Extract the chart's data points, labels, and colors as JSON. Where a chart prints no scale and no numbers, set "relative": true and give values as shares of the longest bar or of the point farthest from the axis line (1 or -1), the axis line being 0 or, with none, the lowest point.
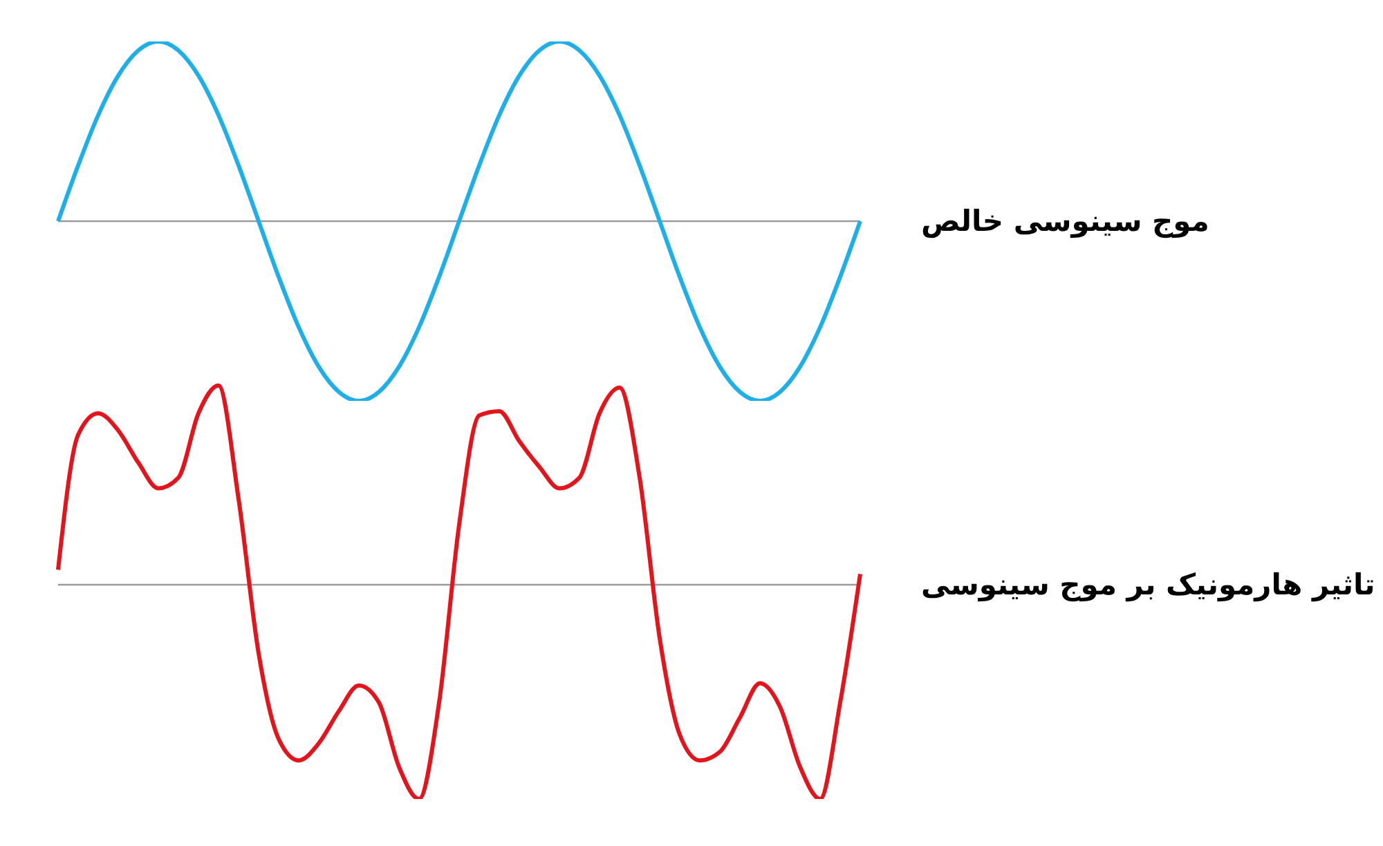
{
  "chart_data": [
    {
      "type": "line",
      "relative": true,
      "legend": false,
      "grid": false,
      "marker": "none",
      "categories": [
        null,
        null,
        null,
        null,
        null,
        null,
        null,
        null,
        null,
        null,
        null,
        null,
        null,
        null,
        null,
        null,
        null,
        null,
        null,
        null,
        null,
        null,
        null,
        null,
        null,
        null,
        null,
        null,
        null,
        null,
        null,
        null,
        null,
        null,
        null,
        null,
        null,
        null,
        null,
        null,
        null
      ],
      "series": [
        {
          "name": "موج سینوسی خالص",
          "color": "#1eaee8",
          "values": [
            0,
            0.31,
            0.59,
            0.81,
            0.95,
            1,
            0.95,
            0.81,
            0.59,
            0.31,
            0,
            -0.31,
            -0.59,
            -0.81,
            -0.95,
            -1,
            -0.95,
            -0.81,
            -0.59,
            -0.31,
            0,
            0.31,
            0.59,
            0.81,
            0.95,
            1,
            0.95,
            0.81,
            0.59,
            0.31,
            0,
            -0.31,
            -0.59,
            -0.81,
            -0.95,
            -1,
            -0.95,
            -0.81,
            -0.59,
            -0.31,
            0
          ]
        }
      ]
    },
    {
      "type": "line",
      "relative": true,
      "legend": false,
      "grid": false,
      "marker": "none",
      "categories": [
        null,
        null,
        null,
        null,
        null,
        null,
        null,
        null,
        null,
        null,
        null,
        null,
        null,
        null,
        null,
        null,
        null,
        null,
        null,
        null,
        null,
        null,
        null,
        null,
        null,
        null,
        null,
        null,
        null,
        null,
        null,
        null,
        null,
        null,
        null,
        null,
        null,
        null,
        null,
        null,
        null
      ],
      "series": [
        {
          "name": "تاثیر هارمونیک بر موج سینوسی",
          "color": "#e4141c",
          "values": [
            0.07,
            0.7,
            0.8,
            0.72,
            0.57,
            0.45,
            0.5,
            0.8,
            0.93,
            0.4,
            -0.32,
            -0.72,
            -0.82,
            -0.74,
            -0.59,
            -0.47,
            -0.55,
            -0.85,
            -1,
            -0.55,
            0.28,
            0.79,
            0.81,
            0.67,
            0.55,
            0.45,
            0.5,
            0.8,
            0.92,
            0.5,
            -0.25,
            -0.7,
            -0.82,
            -0.78,
            -0.62,
            -0.46,
            -0.57,
            -0.85,
            -1,
            -0.55,
            0.05
          ]
        }
      ]
    }
  ]
}
